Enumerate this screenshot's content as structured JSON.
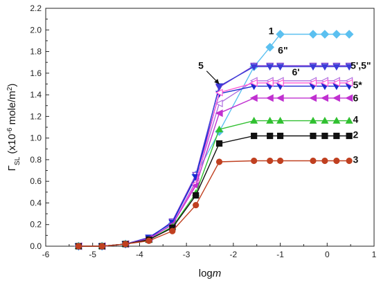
{
  "chart_data": {
    "type": "line",
    "xlabel": "logm",
    "ylabel": "Γ_SL (x10^-6 mole/m^2)",
    "xlim": [
      -6,
      1
    ],
    "ylim": [
      0,
      2.2
    ],
    "x_ticks": [
      "-6",
      "-5",
      "-4",
      "-3",
      "-2",
      "-1",
      "0",
      "1"
    ],
    "y_ticks": [
      "0.0",
      "0.2",
      "0.4",
      "0.6",
      "0.8",
      "1.0",
      "1.2",
      "1.4",
      "1.6",
      "1.8",
      "2.0",
      "2.2"
    ],
    "grid": false,
    "series": [
      {
        "name": "1",
        "color": "#5bc0f0",
        "marker": "diamond",
        "x": [
          -5.3,
          -4.8,
          -4.3,
          -3.8,
          -3.3,
          -2.8,
          -2.3,
          -1.56,
          -1.22,
          -1.0,
          -0.3,
          -0.05,
          0.2,
          0.47
        ],
        "y": [
          0.0,
          0.0,
          0.02,
          0.06,
          0.21,
          0.66,
          1.06,
          1.66,
          1.84,
          1.96,
          1.96,
          1.96,
          1.96,
          1.96
        ]
      },
      {
        "name": "6\"",
        "color": "#7b3fd0",
        "marker": "triangle-down-open",
        "x": [
          -5.3,
          -4.8,
          -4.3,
          -3.8,
          -3.3,
          -2.8,
          -2.3,
          -1.56,
          -1.22,
          -1.0,
          -0.3,
          -0.05,
          0.2,
          0.47
        ],
        "y": [
          0.0,
          0.0,
          0.02,
          0.07,
          0.23,
          0.66,
          1.47,
          1.67,
          1.67,
          1.67,
          1.67,
          1.67,
          1.67,
          1.67
        ]
      },
      {
        "name": "5',5\"",
        "color": "#3b3bd8",
        "marker": "triangle-down",
        "x": [
          -5.3,
          -4.8,
          -4.3,
          -3.8,
          -3.3,
          -2.8,
          -2.3,
          -1.56,
          -1.22,
          -1.0,
          -0.3,
          -0.05,
          0.2,
          0.47
        ],
        "y": [
          0.0,
          0.0,
          0.02,
          0.08,
          0.22,
          0.64,
          1.48,
          1.66,
          1.66,
          1.66,
          1.66,
          1.66,
          1.66,
          1.66
        ]
      },
      {
        "name": "6'",
        "color": "#b070e0",
        "marker": "triangle-left-open",
        "x": [
          -5.3,
          -4.8,
          -4.3,
          -3.8,
          -3.3,
          -2.8,
          -2.3,
          -1.56,
          -1.22,
          -1.0,
          -0.3,
          -0.05,
          0.2,
          0.47
        ],
        "y": [
          0.0,
          0.0,
          0.02,
          0.07,
          0.2,
          0.6,
          1.32,
          1.53,
          1.53,
          1.53,
          1.53,
          1.53,
          1.53,
          1.53
        ]
      },
      {
        "name": "5*",
        "color": "#1a2ad0",
        "marker": "triangle-down",
        "x": [
          -5.3,
          -4.8,
          -4.3,
          -3.8,
          -3.3,
          -2.8,
          -2.3,
          -1.56,
          -1.22,
          -1.0,
          -0.3,
          -0.05,
          0.2,
          0.47
        ],
        "y": [
          0.0,
          0.0,
          0.02,
          0.08,
          0.22,
          0.64,
          1.41,
          1.48,
          1.48,
          1.48,
          1.48,
          1.48,
          1.48,
          1.48
        ]
      },
      {
        "name": "5",
        "color": "#ff5ad8",
        "marker": "triangle-left-open",
        "x": [
          -5.3,
          -4.8,
          -4.3,
          -3.8,
          -3.3,
          -2.8,
          -2.3,
          -1.56,
          -1.22,
          -1.0,
          -0.3,
          -0.05,
          0.2,
          0.47
        ],
        "y": [
          0.0,
          0.0,
          0.02,
          0.07,
          0.2,
          0.58,
          1.42,
          1.51,
          1.51,
          1.51,
          1.51,
          1.51,
          1.51,
          1.51
        ]
      },
      {
        "name": "6",
        "color": "#c030d0",
        "marker": "triangle-left",
        "x": [
          -5.3,
          -4.8,
          -4.3,
          -3.8,
          -3.3,
          -2.8,
          -2.3,
          -1.56,
          -1.22,
          -1.0,
          -0.3,
          -0.05,
          0.2,
          0.47
        ],
        "y": [
          0.0,
          0.0,
          0.02,
          0.07,
          0.2,
          0.56,
          1.23,
          1.37,
          1.37,
          1.37,
          1.37,
          1.37,
          1.37,
          1.37
        ]
      },
      {
        "name": "4",
        "color": "#30c030",
        "marker": "triangle-up",
        "x": [
          -5.3,
          -4.8,
          -4.3,
          -3.8,
          -3.3,
          -2.8,
          -2.3,
          -1.56,
          -1.22,
          -1.0,
          -0.3,
          -0.05,
          0.2,
          0.47
        ],
        "y": [
          0.0,
          0.0,
          0.02,
          0.06,
          0.18,
          0.49,
          1.08,
          1.16,
          1.16,
          1.16,
          1.16,
          1.16,
          1.16,
          1.16
        ]
      },
      {
        "name": "2",
        "color": "#111111",
        "marker": "square",
        "x": [
          -5.3,
          -4.8,
          -4.3,
          -3.8,
          -3.3,
          -2.8,
          -2.3,
          -1.56,
          -1.22,
          -1.0,
          -0.3,
          -0.05,
          0.2,
          0.47
        ],
        "y": [
          0.0,
          0.0,
          0.02,
          0.06,
          0.17,
          0.47,
          0.95,
          1.02,
          1.02,
          1.02,
          1.02,
          1.02,
          1.02,
          1.02
        ]
      },
      {
        "name": "3",
        "color": "#c04020",
        "marker": "circle",
        "x": [
          -5.3,
          -4.8,
          -4.3,
          -3.8,
          -3.3,
          -2.8,
          -2.3,
          -1.56,
          -1.22,
          -1.0,
          -0.3,
          -0.05,
          0.2,
          0.47
        ],
        "y": [
          0.0,
          0.0,
          0.02,
          0.05,
          0.14,
          0.38,
          0.78,
          0.79,
          0.79,
          0.79,
          0.79,
          0.79,
          0.79,
          0.79
        ]
      }
    ],
    "annotations": [
      {
        "text": "1",
        "x": -1.25,
        "y": 1.96
      },
      {
        "text": "6\"",
        "x": -1.05,
        "y": 1.78
      },
      {
        "text": "5',5\"",
        "x": 0.5,
        "y": 1.64
      },
      {
        "text": "6'",
        "x": -0.75,
        "y": 1.58
      },
      {
        "text": "5",
        "x": -2.75,
        "y": 1.64
      },
      {
        "text": "5*",
        "x": 0.55,
        "y": 1.46
      },
      {
        "text": "6",
        "x": 0.55,
        "y": 1.34
      },
      {
        "text": "4",
        "x": 0.55,
        "y": 1.14
      },
      {
        "text": "2",
        "x": 0.55,
        "y": 1.0
      },
      {
        "text": "3",
        "x": 0.55,
        "y": 0.77
      }
    ]
  }
}
